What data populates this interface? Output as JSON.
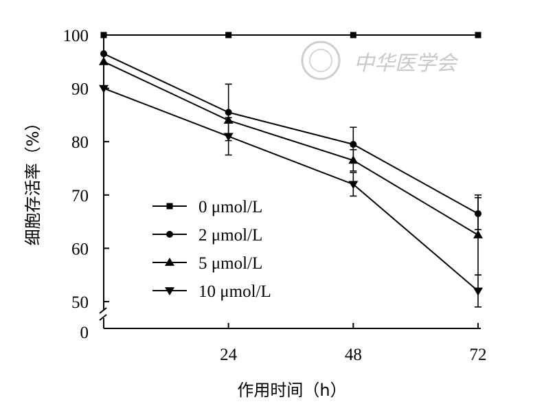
{
  "chart_data": {
    "type": "line",
    "xlabel": "作用时间（h）",
    "ylabel": "细胞存活率（%）",
    "x": [
      0,
      24,
      48,
      72
    ],
    "x_tick_labels": [
      "24",
      "48",
      "72"
    ],
    "y_ticks": [
      50,
      60,
      70,
      80,
      90,
      100
    ],
    "y_tick_labels": [
      "50",
      "60",
      "70",
      "80",
      "90",
      "100"
    ],
    "y_break_label": "0",
    "ylim": [
      50,
      100
    ],
    "y_axis_break": true,
    "legend_position": "lower-left",
    "series": [
      {
        "name": "0 μmol/L",
        "marker": "square",
        "values": [
          100,
          100,
          100,
          100
        ],
        "errors": [
          0,
          0,
          0,
          0
        ]
      },
      {
        "name": "2 μmol/L",
        "marker": "circle",
        "values": [
          96.5,
          85.5,
          79.5,
          66.5
        ],
        "errors": [
          0,
          5.3,
          3.2,
          3.0
        ]
      },
      {
        "name": "5 μmol/L",
        "marker": "triangle-up",
        "values": [
          95,
          84,
          76.5,
          62.5
        ],
        "errors": [
          0,
          0,
          2.0,
          7.5
        ]
      },
      {
        "name": "10 μmol/L",
        "marker": "triangle-down",
        "values": [
          90,
          81,
          72,
          52
        ],
        "errors": [
          0,
          3.5,
          2.2,
          3.0
        ]
      }
    ],
    "watermark": "中华医学会"
  }
}
